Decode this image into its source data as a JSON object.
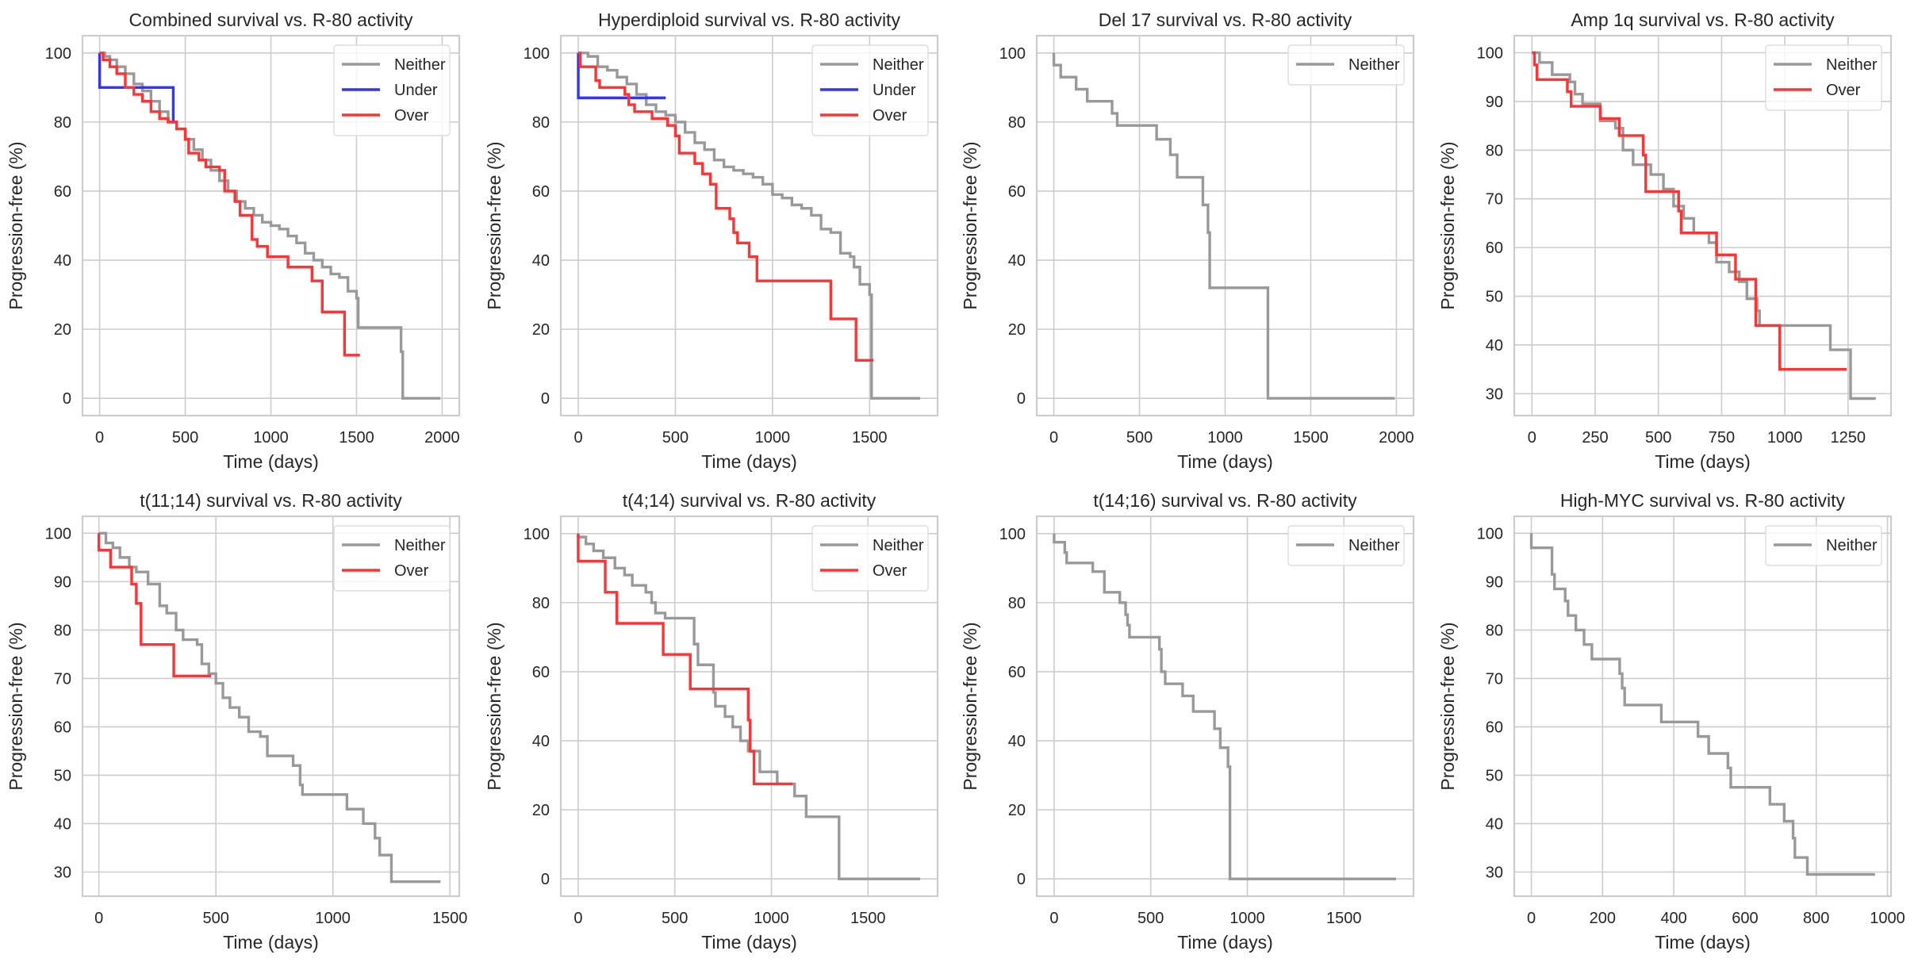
{
  "figure": {
    "colors": {
      "Neither": "#999999",
      "Under": "#3333ff",
      "Over": "#ff3333"
    }
  },
  "chart_data": [
    {
      "type": "line",
      "step": true,
      "title": "Combined survival vs. R-80 activity",
      "xlabel": "Time (days)",
      "ylabel": "Progression-free (%)",
      "xlim": [
        -100,
        2100
      ],
      "ylim": [
        -5,
        105
      ],
      "xticks": [
        0,
        500,
        1000,
        1500,
        2000
      ],
      "yticks": [
        0,
        20,
        40,
        60,
        80,
        100
      ],
      "grid": true,
      "legend": "top-right",
      "series": [
        {
          "name": "Neither",
          "x": [
            0,
            30,
            60,
            100,
            150,
            200,
            250,
            300,
            350,
            400,
            450,
            500,
            550,
            600,
            650,
            700,
            750,
            800,
            850,
            900,
            950,
            1000,
            1050,
            1100,
            1150,
            1200,
            1250,
            1300,
            1350,
            1400,
            1450,
            1500,
            1510,
            1750,
            1760,
            1770,
            1990
          ],
          "y": [
            100,
            99,
            98,
            96,
            94,
            91,
            89,
            86,
            83,
            80,
            78,
            75,
            72,
            69,
            66,
            63,
            60,
            57,
            55,
            53,
            51,
            50,
            49,
            47,
            45,
            42,
            40,
            38,
            36,
            35,
            31,
            29,
            20.5,
            20.5,
            13.5,
            0,
            0
          ]
        },
        {
          "name": "Under",
          "x": [
            0,
            0,
            430,
            430,
            450
          ],
          "y": [
            100,
            90,
            90,
            80,
            80
          ]
        },
        {
          "name": "Over",
          "x": [
            0,
            20,
            60,
            100,
            150,
            200,
            250,
            300,
            350,
            400,
            450,
            500,
            520,
            580,
            620,
            700,
            730,
            790,
            820,
            890,
            920,
            980,
            1100,
            1240,
            1300,
            1430,
            1520
          ],
          "y": [
            100,
            98,
            96,
            94,
            90,
            88,
            86,
            83,
            81,
            80,
            78,
            75,
            71,
            69,
            67,
            66,
            60,
            57,
            53,
            46,
            44,
            41,
            38,
            34,
            25,
            12.5,
            12.5
          ]
        }
      ]
    },
    {
      "type": "line",
      "step": true,
      "title": "Hyperdiploid survival vs. R-80 activity",
      "xlabel": "Time (days)",
      "ylabel": "Progression-free (%)",
      "xlim": [
        -90,
        1850
      ],
      "ylim": [
        -5,
        105
      ],
      "xticks": [
        0,
        500,
        1000,
        1500
      ],
      "yticks": [
        0,
        20,
        40,
        60,
        80,
        100
      ],
      "grid": true,
      "legend": "top-right",
      "series": [
        {
          "name": "Neither",
          "x": [
            0,
            50,
            100,
            150,
            200,
            250,
            300,
            350,
            400,
            450,
            500,
            550,
            600,
            650,
            700,
            750,
            800,
            850,
            900,
            950,
            1000,
            1050,
            1100,
            1150,
            1200,
            1250,
            1300,
            1350,
            1400,
            1420,
            1450,
            1500,
            1510,
            1760
          ],
          "y": [
            100,
            99,
            96,
            95,
            93,
            91,
            88,
            85,
            83,
            82,
            80,
            77,
            74,
            72,
            69,
            67,
            66,
            65,
            64,
            62,
            59,
            58,
            56,
            55,
            53,
            49,
            48,
            42,
            41,
            38,
            33,
            30,
            0,
            0
          ]
        },
        {
          "name": "Under",
          "x": [
            0,
            0,
            450
          ],
          "y": [
            100,
            87,
            87
          ]
        },
        {
          "name": "Over",
          "x": [
            0,
            10,
            90,
            110,
            240,
            260,
            290,
            380,
            460,
            500,
            520,
            600,
            640,
            680,
            710,
            780,
            800,
            820,
            880,
            920,
            1300,
            1430,
            1520
          ],
          "y": [
            100,
            96,
            92,
            90,
            88,
            85,
            83,
            81,
            79,
            76,
            71,
            68,
            65,
            62,
            55,
            52,
            48,
            45,
            41,
            34,
            23,
            11,
            11
          ]
        }
      ]
    },
    {
      "type": "line",
      "step": true,
      "title": "Del 17 survival vs. R-80 activity",
      "xlabel": "Time (days)",
      "ylabel": "Progression-free (%)",
      "xlim": [
        -100,
        2100
      ],
      "ylim": [
        -5,
        105
      ],
      "xticks": [
        0,
        500,
        1000,
        1500,
        2000
      ],
      "yticks": [
        0,
        20,
        40,
        60,
        80,
        100
      ],
      "grid": true,
      "legend": "top-right",
      "series": [
        {
          "name": "Neither",
          "x": [
            0,
            40,
            130,
            195,
            340,
            370,
            600,
            680,
            720,
            870,
            900,
            910,
            1250,
            1990
          ],
          "y": [
            96.5,
            93,
            89.5,
            86,
            82.5,
            79,
            75,
            70.5,
            64,
            56,
            48,
            32,
            0,
            0
          ]
        }
      ]
    },
    {
      "type": "line",
      "step": true,
      "title": "Amp 1q survival vs. R-80 activity",
      "xlabel": "Time (days)",
      "ylabel": "Progression-free (%)",
      "xlim": [
        -70,
        1420
      ],
      "ylim": [
        25.5,
        103.5
      ],
      "xticks": [
        0,
        250,
        500,
        750,
        1000,
        1250
      ],
      "yticks": [
        30,
        40,
        50,
        60,
        70,
        80,
        90,
        100
      ],
      "grid": true,
      "legend": "top-right",
      "series": [
        {
          "name": "Neither",
          "x": [
            0,
            30,
            80,
            150,
            170,
            200,
            270,
            330,
            360,
            400,
            470,
            520,
            560,
            600,
            640,
            700,
            730,
            780,
            820,
            850,
            890,
            900,
            1180,
            1260,
            1360
          ],
          "y": [
            100,
            98,
            95.5,
            94,
            91.5,
            89.5,
            86,
            84.5,
            80,
            77,
            75,
            72,
            68.5,
            66,
            63,
            61,
            57,
            55,
            53,
            49.5,
            47,
            44,
            39,
            29,
            29
          ]
        },
        {
          "name": "Over",
          "x": [
            0,
            10,
            20,
            140,
            155,
            270,
            345,
            440,
            450,
            580,
            590,
            730,
            805,
            885,
            980,
            1245
          ],
          "y": [
            100,
            97.5,
            94.5,
            92,
            89,
            86.5,
            83,
            79,
            71.5,
            67.5,
            63,
            58.5,
            53.5,
            44,
            35,
            35
          ]
        }
      ]
    },
    {
      "type": "line",
      "step": true,
      "title": "t(11;14) survival vs. R-80 activity",
      "xlabel": "Time (days)",
      "ylabel": "Progression-free (%)",
      "xlim": [
        -70,
        1540
      ],
      "ylim": [
        25,
        103.5
      ],
      "xticks": [
        0,
        500,
        1000,
        1500
      ],
      "yticks": [
        30,
        40,
        50,
        60,
        70,
        80,
        90,
        100
      ],
      "grid": true,
      "legend": "top-right",
      "series": [
        {
          "name": "Neither",
          "x": [
            0,
            30,
            60,
            90,
            130,
            160,
            210,
            260,
            290,
            330,
            360,
            420,
            440,
            470,
            500,
            530,
            560,
            600,
            640,
            690,
            720,
            830,
            860,
            870,
            1060,
            1130,
            1180,
            1200,
            1250,
            1460
          ],
          "y": [
            100,
            98,
            97,
            95,
            93,
            92,
            89.5,
            85,
            83.5,
            80,
            78,
            77,
            73,
            71,
            69,
            66,
            64,
            62,
            59,
            58,
            54,
            52,
            48,
            46,
            43,
            40,
            37,
            33.5,
            28,
            28
          ]
        },
        {
          "name": "Over",
          "x": [
            0,
            50,
            140,
            160,
            180,
            320,
            480
          ],
          "y": [
            96.5,
            93,
            89.5,
            85.5,
            77,
            70.5,
            70.5
          ]
        }
      ]
    },
    {
      "type": "line",
      "step": true,
      "title": "t(4;14) survival vs. R-80 activity",
      "xlabel": "Time (days)",
      "ylabel": "Progression-free (%)",
      "xlim": [
        -90,
        1860
      ],
      "ylim": [
        -5,
        105
      ],
      "xticks": [
        0,
        500,
        1000,
        1500
      ],
      "yticks": [
        0,
        20,
        40,
        60,
        80,
        100
      ],
      "grid": true,
      "legend": "top-right",
      "series": [
        {
          "name": "Neither",
          "x": [
            0,
            40,
            80,
            130,
            190,
            240,
            280,
            350,
            380,
            400,
            450,
            600,
            620,
            700,
            710,
            760,
            800,
            840,
            880,
            940,
            1030,
            1120,
            1180,
            1350,
            1770
          ],
          "y": [
            99,
            97,
            95,
            93,
            90,
            88,
            85,
            83,
            80,
            77,
            75.5,
            68,
            62,
            54,
            50,
            47,
            44,
            40,
            37,
            31,
            27.5,
            24,
            18,
            0,
            0
          ]
        },
        {
          "name": "Over",
          "x": [
            0,
            140,
            200,
            440,
            580,
            880,
            890,
            910,
            1110
          ],
          "y": [
            92,
            83,
            74,
            65,
            55,
            46,
            37,
            27.5,
            27.5
          ]
        }
      ]
    },
    {
      "type": "line",
      "step": true,
      "title": "t(14;16) survival vs. R-80 activity",
      "xlabel": "Time (days)",
      "ylabel": "Progression-free (%)",
      "xlim": [
        -90,
        1860
      ],
      "ylim": [
        -5,
        105
      ],
      "xticks": [
        0,
        500,
        1000,
        1500
      ],
      "yticks": [
        0,
        20,
        40,
        60,
        80,
        100
      ],
      "grid": true,
      "legend": "top-right",
      "series": [
        {
          "name": "Neither",
          "x": [
            0,
            55,
            65,
            200,
            260,
            340,
            370,
            380,
            390,
            545,
            555,
            575,
            665,
            720,
            830,
            860,
            900,
            910,
            1770
          ],
          "y": [
            97.5,
            94.5,
            91.5,
            89,
            83,
            80,
            76.5,
            73.5,
            70,
            66.5,
            60,
            56.5,
            53,
            48.5,
            43.5,
            38,
            32.5,
            0,
            0
          ]
        }
      ]
    },
    {
      "type": "line",
      "step": true,
      "title": "High-MYC survival vs. R-80 activity",
      "xlabel": "Time (days)",
      "ylabel": "Progression-free (%)",
      "xlim": [
        -48,
        1010
      ],
      "ylim": [
        25,
        103.5
      ],
      "xticks": [
        0,
        200,
        400,
        600,
        800,
        1000
      ],
      "yticks": [
        30,
        40,
        50,
        60,
        70,
        80,
        90,
        100
      ],
      "grid": true,
      "legend": "top-right",
      "series": [
        {
          "name": "Neither",
          "x": [
            0,
            58,
            65,
            95,
            103,
            125,
            148,
            170,
            248,
            255,
            262,
            365,
            468,
            498,
            552,
            560,
            670,
            710,
            735,
            740,
            775,
            965
          ],
          "y": [
            97,
            91.5,
            88.5,
            86,
            83,
            80,
            77,
            74,
            71,
            68,
            64.5,
            61,
            58,
            54.5,
            51.5,
            47.5,
            44,
            40.5,
            37,
            33,
            29.5,
            29.5
          ]
        }
      ]
    }
  ]
}
